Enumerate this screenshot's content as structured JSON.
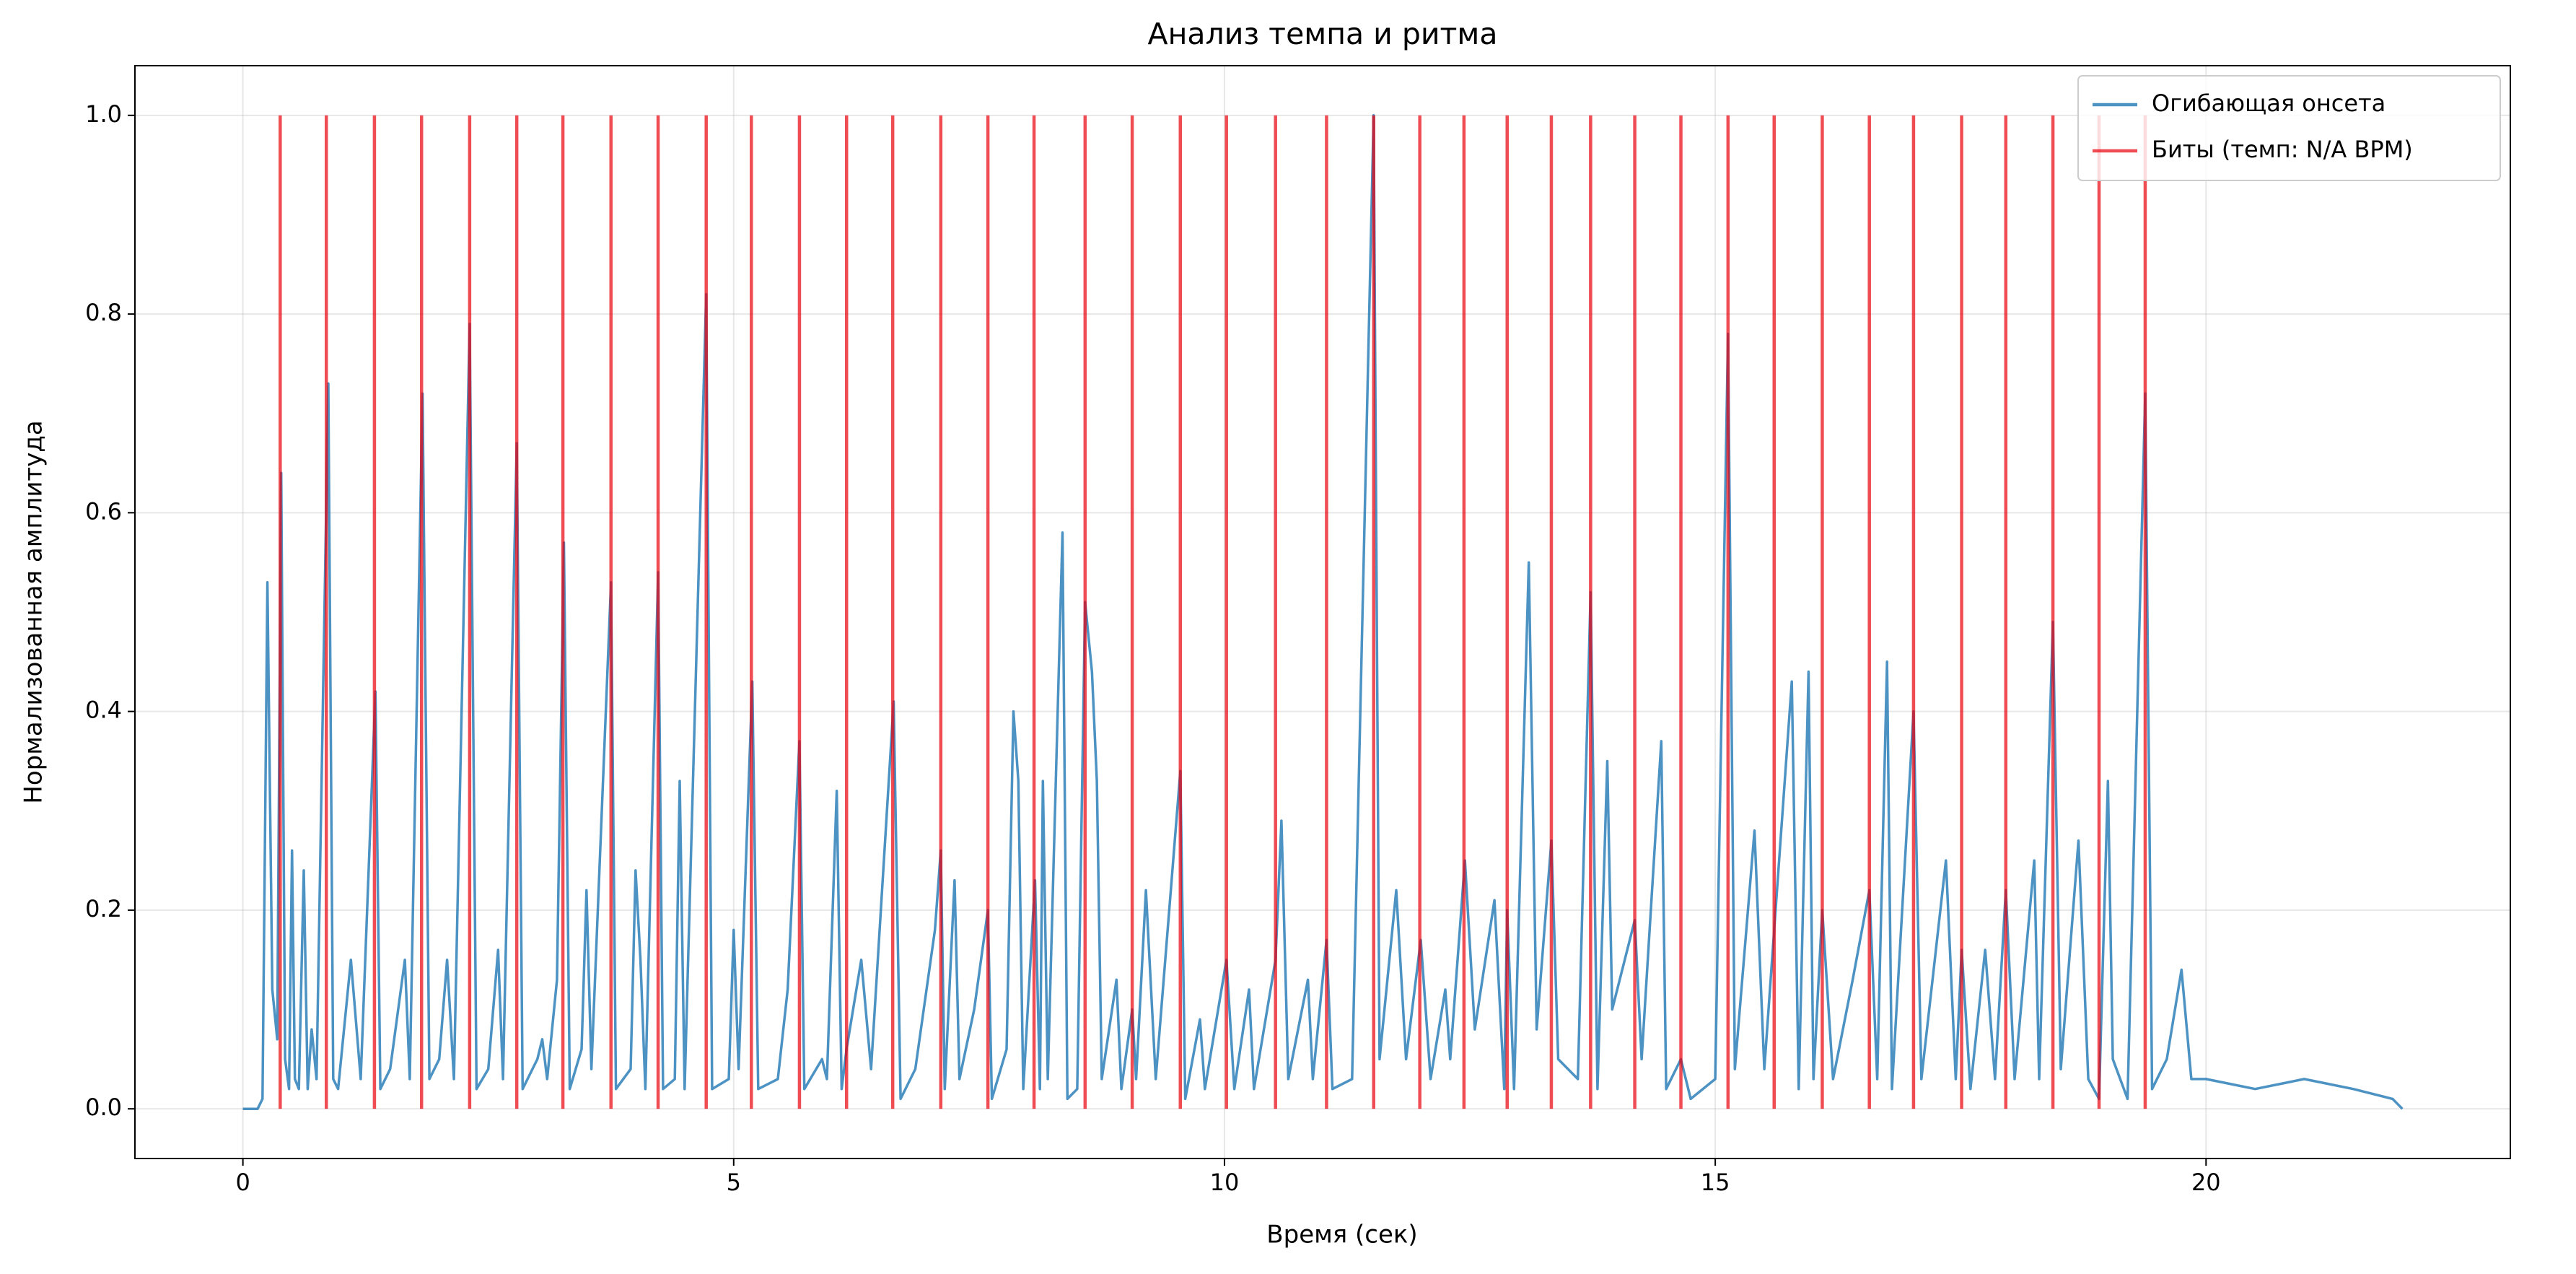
{
  "chart_data": {
    "type": "line",
    "title": "Анализ темпа и ритма",
    "xlabel": "Время (сек)",
    "ylabel": "Нормализованная амплитуда",
    "xlim": [
      -1.1,
      23.1
    ],
    "ylim": [
      -0.05,
      1.05
    ],
    "xticks": [
      0,
      5,
      10,
      15,
      20
    ],
    "yticks": [
      {
        "value": 0,
        "label": "0.0"
      },
      {
        "value": 0.2,
        "label": "0.2"
      },
      {
        "value": 0.4,
        "label": "0.4"
      },
      {
        "value": 0.6,
        "label": "0.6"
      },
      {
        "value": 0.8,
        "label": "0.8"
      },
      {
        "value": 1,
        "label": "1.0"
      }
    ],
    "grid": true,
    "legend": "upper right",
    "series": [
      {
        "name": "Огибающая онсета",
        "color": "#1f77b4",
        "x": [
          0,
          0.15,
          0.2,
          0.25,
          0.3,
          0.35,
          0.39,
          0.43,
          0.47,
          0.5,
          0.53,
          0.57,
          0.62,
          0.66,
          0.7,
          0.75,
          0.87,
          0.92,
          0.97,
          1.05,
          1.1,
          1.2,
          1.35,
          1.4,
          1.5,
          1.65,
          1.7,
          1.83,
          1.9,
          2.0,
          2.08,
          2.15,
          2.31,
          2.38,
          2.5,
          2.6,
          2.65,
          2.79,
          2.85,
          3.0,
          3.05,
          3.1,
          3.2,
          3.27,
          3.33,
          3.45,
          3.5,
          3.55,
          3.75,
          3.8,
          3.95,
          4.0,
          4.05,
          4.1,
          4.23,
          4.28,
          4.4,
          4.45,
          4.5,
          4.72,
          4.78,
          4.95,
          5.0,
          5.05,
          5.19,
          5.25,
          5.45,
          5.55,
          5.67,
          5.72,
          5.9,
          5.95,
          6.05,
          6.1,
          6.15,
          6.3,
          6.4,
          6.63,
          6.7,
          6.85,
          7.05,
          7.11,
          7.15,
          7.25,
          7.3,
          7.45,
          7.59,
          7.63,
          7.78,
          7.85,
          7.9,
          7.95,
          8.07,
          8.12,
          8.15,
          8.2,
          8.35,
          8.4,
          8.5,
          8.58,
          8.65,
          8.7,
          8.75,
          8.9,
          8.95,
          9.06,
          9.1,
          9.2,
          9.3,
          9.55,
          9.6,
          9.75,
          9.8,
          10.02,
          10.1,
          10.25,
          10.3,
          10.52,
          10.58,
          10.65,
          10.85,
          10.9,
          11.04,
          11.1,
          11.3,
          11.52,
          11.58,
          11.75,
          11.85,
          12.0,
          12.1,
          12.25,
          12.3,
          12.45,
          12.55,
          12.75,
          12.85,
          12.88,
          12.95,
          13.1,
          13.18,
          13.33,
          13.4,
          13.6,
          13.73,
          13.8,
          13.9,
          13.95,
          14.18,
          14.25,
          14.45,
          14.5,
          14.65,
          14.75,
          15.0,
          15.13,
          15.2,
          15.4,
          15.5,
          15.78,
          15.85,
          15.95,
          16.0,
          16.09,
          16.2,
          16.4,
          16.57,
          16.65,
          16.75,
          16.8,
          17.02,
          17.1,
          17.35,
          17.45,
          17.51,
          17.6,
          17.75,
          17.85,
          17.96,
          18.05,
          18.25,
          18.3,
          18.44,
          18.52,
          18.7,
          18.8,
          18.91,
          19.0,
          19.05,
          19.2,
          19.38,
          19.45,
          19.6,
          19.75,
          19.85,
          20.0,
          20.5,
          21.0,
          21.5,
          21.9,
          22.0
        ],
        "values": [
          0,
          0,
          0.01,
          0.53,
          0.12,
          0.07,
          0.64,
          0.05,
          0.02,
          0.26,
          0.03,
          0.02,
          0.24,
          0.02,
          0.08,
          0.03,
          0.73,
          0.03,
          0.02,
          0.1,
          0.15,
          0.03,
          0.42,
          0.02,
          0.04,
          0.15,
          0.03,
          0.72,
          0.03,
          0.05,
          0.15,
          0.03,
          0.79,
          0.02,
          0.04,
          0.16,
          0.03,
          0.67,
          0.02,
          0.05,
          0.07,
          0.03,
          0.13,
          0.57,
          0.02,
          0.06,
          0.22,
          0.04,
          0.53,
          0.02,
          0.04,
          0.24,
          0.15,
          0.02,
          0.54,
          0.02,
          0.03,
          0.33,
          0.02,
          0.82,
          0.02,
          0.03,
          0.18,
          0.04,
          0.43,
          0.02,
          0.03,
          0.12,
          0.37,
          0.02,
          0.05,
          0.03,
          0.32,
          0.02,
          0.06,
          0.15,
          0.04,
          0.41,
          0.01,
          0.04,
          0.18,
          0.26,
          0.02,
          0.23,
          0.03,
          0.1,
          0.2,
          0.01,
          0.06,
          0.4,
          0.33,
          0.02,
          0.23,
          0.02,
          0.33,
          0.03,
          0.58,
          0.01,
          0.02,
          0.51,
          0.44,
          0.33,
          0.03,
          0.13,
          0.02,
          0.1,
          0.03,
          0.22,
          0.03,
          0.34,
          0.01,
          0.09,
          0.02,
          0.15,
          0.02,
          0.12,
          0.02,
          0.15,
          0.29,
          0.03,
          0.13,
          0.03,
          0.17,
          0.02,
          0.03,
          1.0,
          0.05,
          0.22,
          0.05,
          0.17,
          0.03,
          0.12,
          0.05,
          0.25,
          0.08,
          0.21,
          0.02,
          0.2,
          0.02,
          0.55,
          0.08,
          0.27,
          0.05,
          0.03,
          0.52,
          0.02,
          0.35,
          0.1,
          0.19,
          0.05,
          0.37,
          0.02,
          0.05,
          0.01,
          0.03,
          0.78,
          0.04,
          0.28,
          0.04,
          0.43,
          0.02,
          0.44,
          0.03,
          0.2,
          0.03,
          0.13,
          0.22,
          0.03,
          0.45,
          0.02,
          0.4,
          0.03,
          0.25,
          0.03,
          0.16,
          0.02,
          0.16,
          0.03,
          0.22,
          0.03,
          0.25,
          0.03,
          0.49,
          0.04,
          0.27,
          0.03,
          0.01,
          0.33,
          0.05,
          0.01,
          0.72,
          0.02,
          0.05,
          0.14,
          0.03,
          0.03,
          0.02,
          0.03,
          0.02,
          0.01,
          0
        ]
      }
    ],
    "beats": {
      "name": "Биты (темп: N/A BPM)",
      "color": "#e8000b",
      "ymin": 0,
      "ymax": 1,
      "x": [
        0.38,
        0.85,
        1.34,
        1.82,
        2.31,
        2.79,
        3.26,
        3.75,
        4.23,
        4.72,
        5.18,
        5.67,
        6.15,
        6.62,
        7.11,
        7.59,
        8.06,
        8.58,
        9.06,
        9.55,
        10.02,
        10.52,
        11.04,
        11.52,
        11.99,
        12.44,
        12.88,
        13.33,
        13.73,
        14.18,
        14.65,
        15.13,
        15.6,
        16.09,
        16.57,
        17.02,
        17.51,
        17.96,
        18.44,
        18.91,
        19.38
      ]
    }
  }
}
